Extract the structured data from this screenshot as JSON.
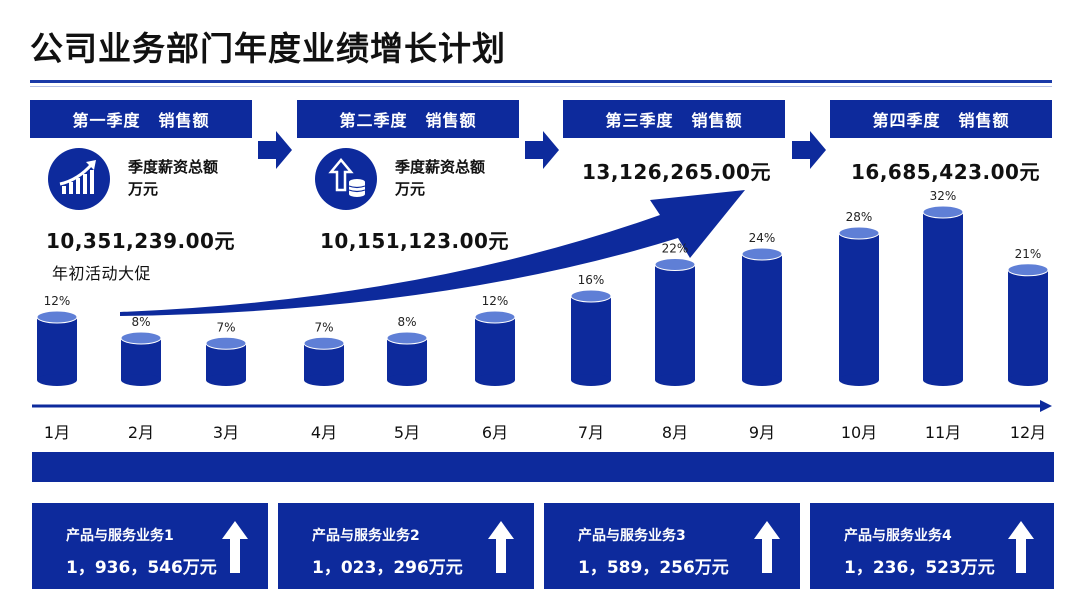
{
  "title": "公司业务部门年度业绩增长计划",
  "quarters": [
    {
      "label": "第一季度",
      "sales_label": "销售额",
      "subtitle_line1": "季度薪资总额",
      "subtitle_line2": "万元",
      "icon": "growth-chart-icon",
      "value": "10,351,239.00元",
      "note": "年初活动大促"
    },
    {
      "label": "第二季度",
      "sales_label": "销售额",
      "subtitle_line1": "季度薪资总额",
      "subtitle_line2": "万元",
      "icon": "upload-coins-icon",
      "value": "10,151,123.00元"
    },
    {
      "label": "第三季度",
      "sales_label": "销售额",
      "value": "13,126,265.00元"
    },
    {
      "label": "第四季度",
      "sales_label": "销售额",
      "value": "16,685,423.00元"
    }
  ],
  "chart_data": {
    "type": "bar",
    "categories": [
      "1月",
      "2月",
      "3月",
      "4月",
      "5月",
      "6月",
      "7月",
      "8月",
      "9月",
      "10月",
      "11月",
      "12月"
    ],
    "values": [
      12,
      8,
      7,
      7,
      8,
      12,
      16,
      22,
      24,
      28,
      32,
      21
    ],
    "value_labels": [
      "12%",
      "8%",
      "7%",
      "7%",
      "8%",
      "12%",
      "16%",
      "22%",
      "24%",
      "28%",
      "32%",
      "21%"
    ],
    "unit": "%",
    "ylim": [
      0,
      32
    ],
    "bar_style": "cylinder",
    "trend_arrow": "rising"
  },
  "products": [
    {
      "name": "产品与服务业务1",
      "value": "1，936，546万元"
    },
    {
      "name": "产品与服务业务2",
      "value": "1，023，296万元"
    },
    {
      "name": "产品与服务业务3",
      "value": "1，589，256万元"
    },
    {
      "name": "产品与服务业务4",
      "value": "1，236，523万元"
    }
  ],
  "colors": {
    "primary": "#0d2a9c",
    "cylinder_top": "#5f7fd6",
    "white": "#ffffff"
  }
}
